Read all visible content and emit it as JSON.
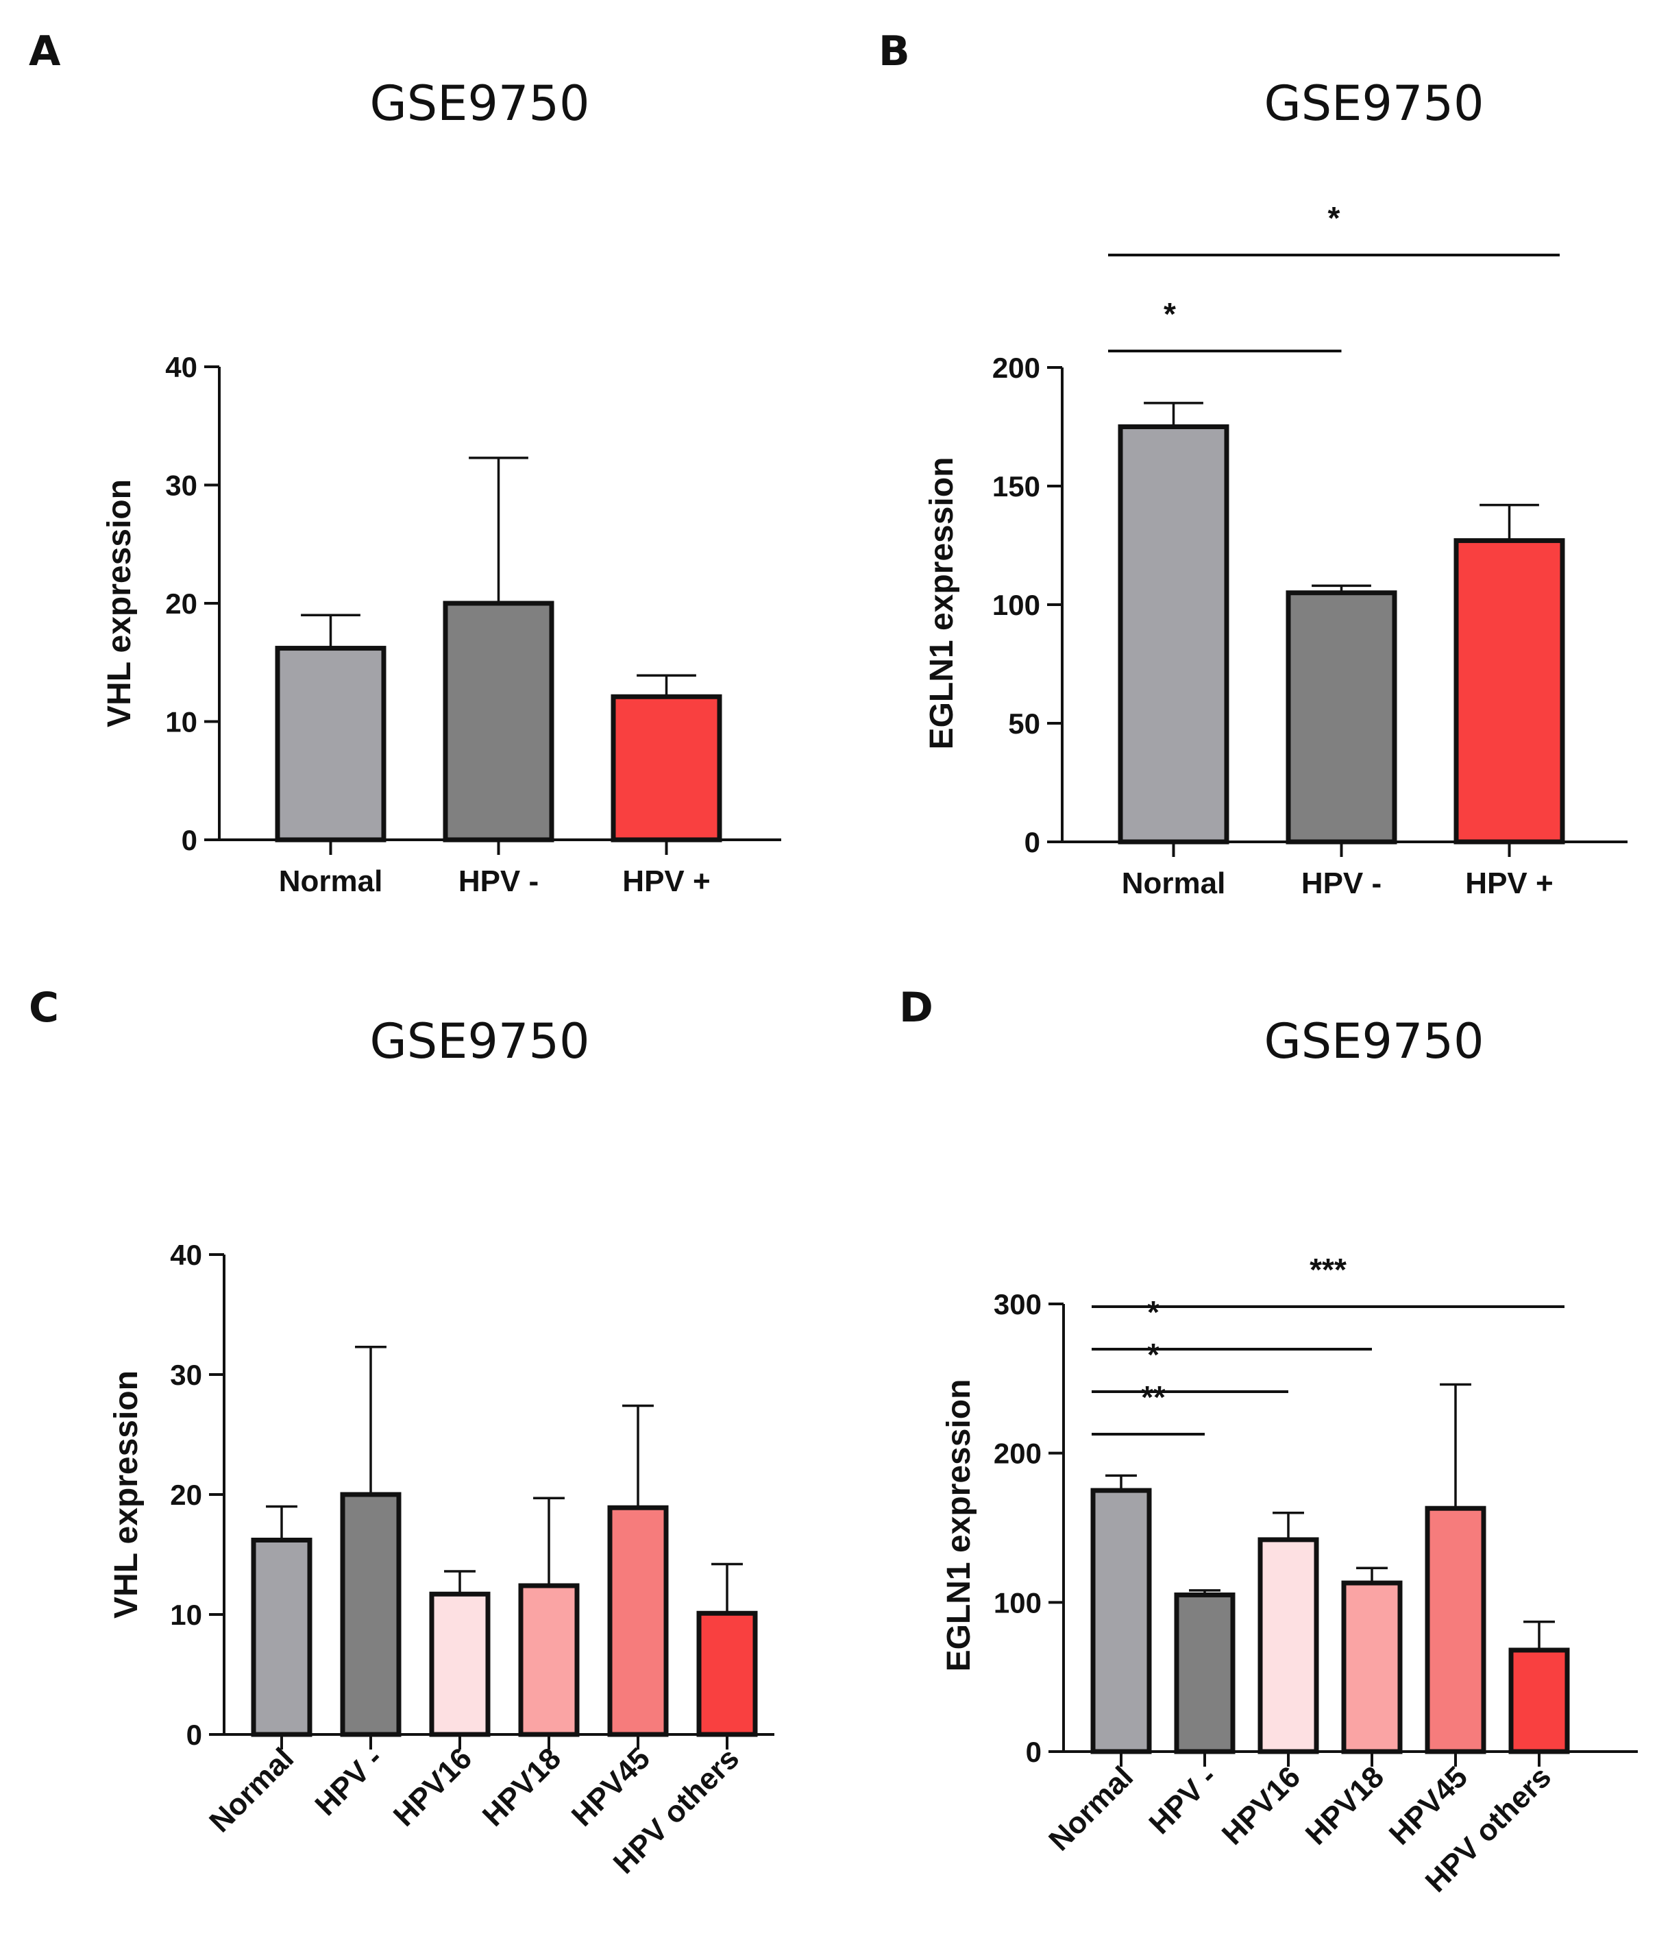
{
  "figure": {
    "panels": [
      "A",
      "B",
      "C",
      "D"
    ]
  },
  "chart_data": [
    {
      "panel": "A",
      "type": "bar",
      "title": "GSE9750",
      "ylabel": "VHL expression",
      "ylim": [
        0,
        40
      ],
      "yticks": [
        0,
        10,
        20,
        30,
        40
      ],
      "categories": [
        "Normal",
        "HPV -",
        "HPV +"
      ],
      "values": [
        16.2,
        20.0,
        12.1
      ],
      "errors": [
        2.8,
        12.3,
        1.8
      ],
      "colors": [
        "#a3a3a8",
        "#808080",
        "#f94040"
      ],
      "rotate_labels": false,
      "significance": []
    },
    {
      "panel": "B",
      "type": "bar",
      "title": "GSE9750",
      "ylabel": "EGLN1 expression",
      "ylim": [
        0,
        200
      ],
      "yticks": [
        0,
        50,
        100,
        150,
        200
      ],
      "categories": [
        "Normal",
        "HPV -",
        "HPV +"
      ],
      "values": [
        175,
        105,
        127
      ],
      "errors": [
        10,
        3,
        15
      ],
      "colors": [
        "#a3a3a8",
        "#808080",
        "#f94040"
      ],
      "rotate_labels": false,
      "significance": [
        {
          "from": 0,
          "to": 1,
          "label": "*",
          "level": 1
        },
        {
          "from": 0,
          "to": 2,
          "label": "*",
          "level": 2
        }
      ]
    },
    {
      "panel": "C",
      "type": "bar",
      "title": "GSE9750",
      "ylabel": "VHL expression",
      "ylim": [
        0,
        40
      ],
      "yticks": [
        0,
        10,
        20,
        30,
        40
      ],
      "categories": [
        "Normal",
        "HPV -",
        "HPV16",
        "HPV18",
        "HPV45",
        "HPV others"
      ],
      "values": [
        16.2,
        20.0,
        11.7,
        12.4,
        18.9,
        10.1
      ],
      "errors": [
        2.8,
        12.3,
        1.9,
        7.3,
        8.5,
        4.1
      ],
      "colors": [
        "#a3a3a8",
        "#808080",
        "#fde0e2",
        "#faa4a4",
        "#f67c7c",
        "#f94040"
      ],
      "rotate_labels": true,
      "significance": []
    },
    {
      "panel": "D",
      "type": "bar",
      "title": "GSE9750",
      "ylabel": "EGLN1  expression",
      "ylim": [
        0,
        300
      ],
      "yticks": [
        0,
        100,
        200,
        300
      ],
      "categories": [
        "Normal",
        "HPV -",
        "HPV16",
        "HPV18",
        "HPV45",
        "HPV others"
      ],
      "values": [
        175,
        105,
        142,
        113,
        163,
        68
      ],
      "errors": [
        10,
        3,
        18,
        10,
        83,
        19
      ],
      "colors": [
        "#a3a3a8",
        "#808080",
        "#fde0e2",
        "#faa4a4",
        "#f67c7c",
        "#f94040"
      ],
      "rotate_labels": true,
      "significance": [
        {
          "from": 0,
          "to": 1,
          "label": "**",
          "level": 1
        },
        {
          "from": 0,
          "to": 2,
          "label": "*",
          "level": 2
        },
        {
          "from": 0,
          "to": 3,
          "label": "*",
          "level": 3
        },
        {
          "from": 0,
          "to": 5,
          "label": "***",
          "level": 4
        }
      ]
    }
  ]
}
